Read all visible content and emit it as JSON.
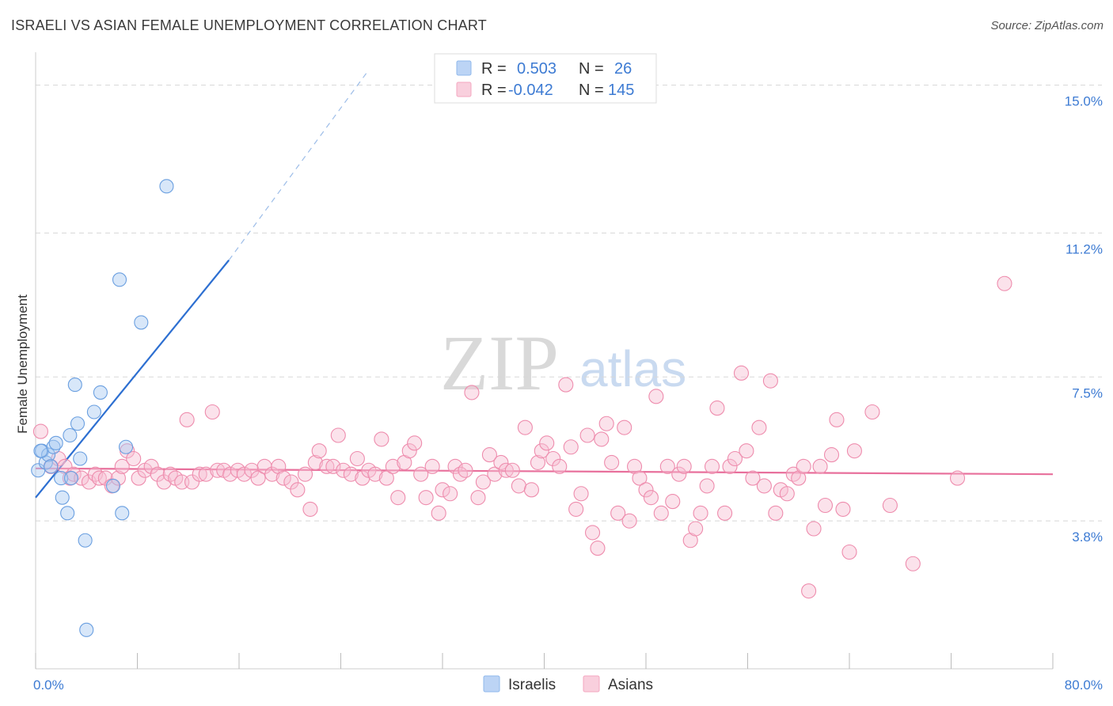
{
  "header": {
    "title": "ISRAELI VS ASIAN FEMALE UNEMPLOYMENT CORRELATION CHART",
    "source": "Source: ZipAtlas.com"
  },
  "watermark": {
    "zip": "ZIP",
    "atlas": "atlas"
  },
  "legend_box": {
    "rows": [
      {
        "r_label": "R =",
        "r_value": "0.503",
        "n_label": "N =",
        "n_value": "26",
        "color": "#8fb8ec"
      },
      {
        "r_label": "R =",
        "r_value": "-0.042",
        "n_label": "N =",
        "n_value": "145",
        "color": "#f4a7c0"
      }
    ]
  },
  "bottom_legend": {
    "items": [
      {
        "label": "Israelis",
        "color": "#8fb8ec"
      },
      {
        "label": "Asians",
        "color": "#f4a7c0"
      }
    ]
  },
  "chart_data": {
    "type": "scatter",
    "title": "ISRAELI VS ASIAN FEMALE UNEMPLOYMENT CORRELATION CHART",
    "xlabel": "",
    "ylabel": "Female Unemployment",
    "xlim": [
      0,
      80
    ],
    "ylim": [
      0,
      15.6
    ],
    "x_tick_labels": [
      {
        "value": 0,
        "label": "0.0%"
      },
      {
        "value": 80,
        "label": "80.0%"
      }
    ],
    "x_minor_ticks": [
      0,
      8,
      16,
      24,
      32,
      40,
      48,
      56,
      64,
      72,
      80
    ],
    "y_ticks": [
      {
        "value": 3.8,
        "label": "3.8%"
      },
      {
        "value": 7.5,
        "label": "7.5%"
      },
      {
        "value": 11.2,
        "label": "11.2%"
      },
      {
        "value": 15.0,
        "label": "15.0%"
      }
    ],
    "series": [
      {
        "name": "Israelis",
        "color": "#6a9fe0",
        "fill": "#a9c9f2",
        "trend": {
          "x0": 0,
          "y0": 4.4,
          "x1": 15.2,
          "y1": 10.5,
          "dash_x1": 26,
          "dash_y1": 15.3,
          "color": "#2d6fd1"
        },
        "points": [
          [
            0.2,
            5.1
          ],
          [
            0.5,
            5.6
          ],
          [
            0.8,
            5.3
          ],
          [
            1.0,
            5.5
          ],
          [
            1.2,
            5.2
          ],
          [
            1.4,
            5.7
          ],
          [
            1.6,
            5.8
          ],
          [
            2.0,
            4.9
          ],
          [
            2.1,
            4.4
          ],
          [
            2.5,
            4.0
          ],
          [
            2.7,
            6.0
          ],
          [
            2.8,
            4.9
          ],
          [
            3.1,
            7.3
          ],
          [
            3.3,
            6.3
          ],
          [
            3.5,
            5.4
          ],
          [
            3.9,
            3.3
          ],
          [
            4.0,
            1.0
          ],
          [
            4.6,
            6.6
          ],
          [
            5.1,
            7.1
          ],
          [
            6.1,
            4.7
          ],
          [
            6.8,
            4.0
          ],
          [
            7.1,
            5.7
          ],
          [
            6.6,
            10.0
          ],
          [
            8.3,
            8.9
          ],
          [
            10.3,
            12.4
          ],
          [
            0.4,
            5.6
          ]
        ]
      },
      {
        "name": "Asians",
        "color": "#ee8cad",
        "fill": "#f7bfd2",
        "trend": {
          "x0": 0,
          "y0": 5.15,
          "x1": 80,
          "y1": 5.0,
          "color": "#e8709c"
        },
        "points": [
          [
            0.4,
            6.1
          ],
          [
            1.2,
            5.2
          ],
          [
            1.8,
            5.4
          ],
          [
            2.3,
            5.2
          ],
          [
            2.7,
            4.9
          ],
          [
            3.0,
            5.0
          ],
          [
            3.6,
            4.9
          ],
          [
            4.2,
            4.8
          ],
          [
            4.7,
            5.0
          ],
          [
            5.0,
            4.9
          ],
          [
            5.5,
            4.9
          ],
          [
            6.0,
            4.7
          ],
          [
            6.5,
            4.9
          ],
          [
            6.8,
            5.2
          ],
          [
            7.2,
            5.6
          ],
          [
            7.7,
            5.4
          ],
          [
            8.1,
            4.9
          ],
          [
            8.6,
            5.1
          ],
          [
            9.1,
            5.2
          ],
          [
            9.6,
            5.0
          ],
          [
            10.1,
            4.8
          ],
          [
            10.6,
            5.0
          ],
          [
            11.0,
            4.9
          ],
          [
            11.5,
            4.8
          ],
          [
            11.9,
            6.4
          ],
          [
            12.3,
            4.8
          ],
          [
            12.9,
            5.0
          ],
          [
            13.4,
            5.0
          ],
          [
            13.9,
            6.6
          ],
          [
            14.3,
            5.1
          ],
          [
            14.8,
            5.1
          ],
          [
            15.3,
            5.0
          ],
          [
            15.9,
            5.1
          ],
          [
            16.4,
            5.0
          ],
          [
            17.0,
            5.1
          ],
          [
            17.5,
            4.9
          ],
          [
            18.0,
            5.2
          ],
          [
            18.6,
            5.0
          ],
          [
            19.1,
            5.2
          ],
          [
            19.5,
            4.9
          ],
          [
            20.1,
            4.8
          ],
          [
            20.6,
            4.6
          ],
          [
            21.2,
            5.0
          ],
          [
            21.6,
            4.1
          ],
          [
            22.0,
            5.3
          ],
          [
            22.3,
            5.6
          ],
          [
            22.9,
            5.2
          ],
          [
            23.4,
            5.2
          ],
          [
            23.8,
            6.0
          ],
          [
            24.2,
            5.1
          ],
          [
            24.8,
            5.0
          ],
          [
            25.3,
            5.4
          ],
          [
            25.7,
            4.9
          ],
          [
            26.2,
            5.1
          ],
          [
            26.7,
            5.0
          ],
          [
            27.2,
            5.9
          ],
          [
            27.6,
            4.9
          ],
          [
            28.1,
            5.2
          ],
          [
            28.5,
            4.4
          ],
          [
            29.0,
            5.3
          ],
          [
            29.4,
            5.6
          ],
          [
            29.8,
            5.8
          ],
          [
            30.3,
            5.0
          ],
          [
            30.7,
            4.4
          ],
          [
            31.2,
            5.2
          ],
          [
            31.7,
            4.0
          ],
          [
            32.0,
            4.6
          ],
          [
            32.6,
            4.5
          ],
          [
            33.0,
            5.2
          ],
          [
            33.4,
            5.0
          ],
          [
            33.8,
            5.1
          ],
          [
            34.3,
            7.1
          ],
          [
            34.8,
            4.4
          ],
          [
            35.2,
            4.8
          ],
          [
            35.7,
            5.5
          ],
          [
            36.1,
            5.0
          ],
          [
            36.6,
            5.3
          ],
          [
            37.0,
            5.1
          ],
          [
            37.5,
            5.1
          ],
          [
            38.0,
            4.7
          ],
          [
            38.5,
            6.2
          ],
          [
            39.0,
            4.6
          ],
          [
            39.5,
            5.3
          ],
          [
            39.8,
            5.6
          ],
          [
            40.2,
            5.8
          ],
          [
            40.7,
            5.4
          ],
          [
            41.2,
            5.2
          ],
          [
            41.7,
            7.3
          ],
          [
            42.1,
            5.7
          ],
          [
            42.5,
            4.1
          ],
          [
            42.9,
            4.5
          ],
          [
            43.4,
            6.0
          ],
          [
            43.8,
            3.5
          ],
          [
            44.2,
            3.1
          ],
          [
            44.5,
            5.9
          ],
          [
            44.9,
            6.3
          ],
          [
            45.3,
            5.3
          ],
          [
            45.8,
            4.0
          ],
          [
            46.3,
            6.2
          ],
          [
            46.7,
            3.8
          ],
          [
            47.1,
            5.2
          ],
          [
            47.5,
            4.9
          ],
          [
            48.0,
            4.6
          ],
          [
            48.4,
            4.4
          ],
          [
            48.8,
            7.0
          ],
          [
            49.2,
            4.0
          ],
          [
            49.7,
            5.2
          ],
          [
            50.1,
            4.3
          ],
          [
            50.6,
            5.0
          ],
          [
            51.0,
            5.2
          ],
          [
            51.5,
            3.3
          ],
          [
            51.9,
            3.6
          ],
          [
            52.3,
            4.0
          ],
          [
            52.8,
            4.7
          ],
          [
            53.2,
            5.2
          ],
          [
            53.6,
            6.7
          ],
          [
            54.2,
            4.0
          ],
          [
            54.6,
            5.2
          ],
          [
            55.0,
            5.4
          ],
          [
            55.5,
            7.6
          ],
          [
            55.9,
            5.6
          ],
          [
            56.4,
            4.9
          ],
          [
            56.9,
            6.2
          ],
          [
            57.3,
            4.7
          ],
          [
            57.8,
            7.4
          ],
          [
            58.2,
            4.0
          ],
          [
            58.6,
            4.6
          ],
          [
            59.1,
            4.5
          ],
          [
            59.6,
            5.0
          ],
          [
            60.0,
            4.9
          ],
          [
            60.4,
            5.2
          ],
          [
            60.8,
            2.0
          ],
          [
            61.2,
            3.6
          ],
          [
            61.7,
            5.2
          ],
          [
            62.1,
            4.2
          ],
          [
            62.6,
            5.5
          ],
          [
            63.0,
            6.4
          ],
          [
            63.5,
            4.1
          ],
          [
            64.0,
            3.0
          ],
          [
            64.4,
            5.6
          ],
          [
            65.8,
            6.6
          ],
          [
            67.2,
            4.2
          ],
          [
            69.0,
            2.7
          ],
          [
            72.5,
            4.9
          ],
          [
            76.2,
            9.9
          ]
        ]
      }
    ]
  }
}
